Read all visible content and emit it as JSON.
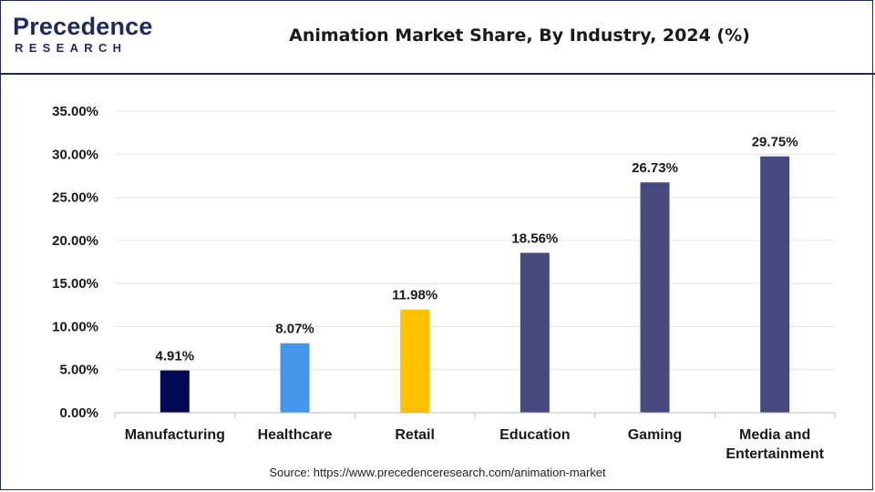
{
  "header": {
    "logo_main": "Precedence",
    "logo_sub": "RESEARCH",
    "title": "Animation Market Share, By Industry, 2024 (%)"
  },
  "chart_data": {
    "type": "bar",
    "title": "Animation Market Share, By Industry, 2024 (%)",
    "categories": [
      "Manufacturing",
      "Healthcare",
      "Retail",
      "Education",
      "Gaming",
      "Media and Entertainment"
    ],
    "category_lines": [
      [
        "Manufacturing"
      ],
      [
        "Healthcare"
      ],
      [
        "Retail"
      ],
      [
        "Education"
      ],
      [
        "Gaming"
      ],
      [
        "Media and",
        "Entertainment"
      ]
    ],
    "values": [
      4.91,
      8.07,
      11.98,
      18.56,
      26.73,
      29.75
    ],
    "data_labels": [
      "4.91%",
      "8.07%",
      "11.98%",
      "18.56%",
      "26.73%",
      "29.75%"
    ],
    "bar_colors": [
      "#020852",
      "#4597ec",
      "#ffc000",
      "#464a7e",
      "#464a7e",
      "#464a7e"
    ],
    "ylim": [
      0,
      35
    ],
    "y_ticks": [
      0,
      5,
      10,
      15,
      20,
      25,
      30,
      35
    ],
    "y_tick_labels": [
      "0.00%",
      "5.00%",
      "10.00%",
      "15.00%",
      "20.00%",
      "25.00%",
      "30.00%",
      "35.00%"
    ],
    "xlabel": "",
    "ylabel": "",
    "grid": true,
    "legend": "none"
  },
  "source": "Source: https://www.precedenceresearch.com/animation-market"
}
